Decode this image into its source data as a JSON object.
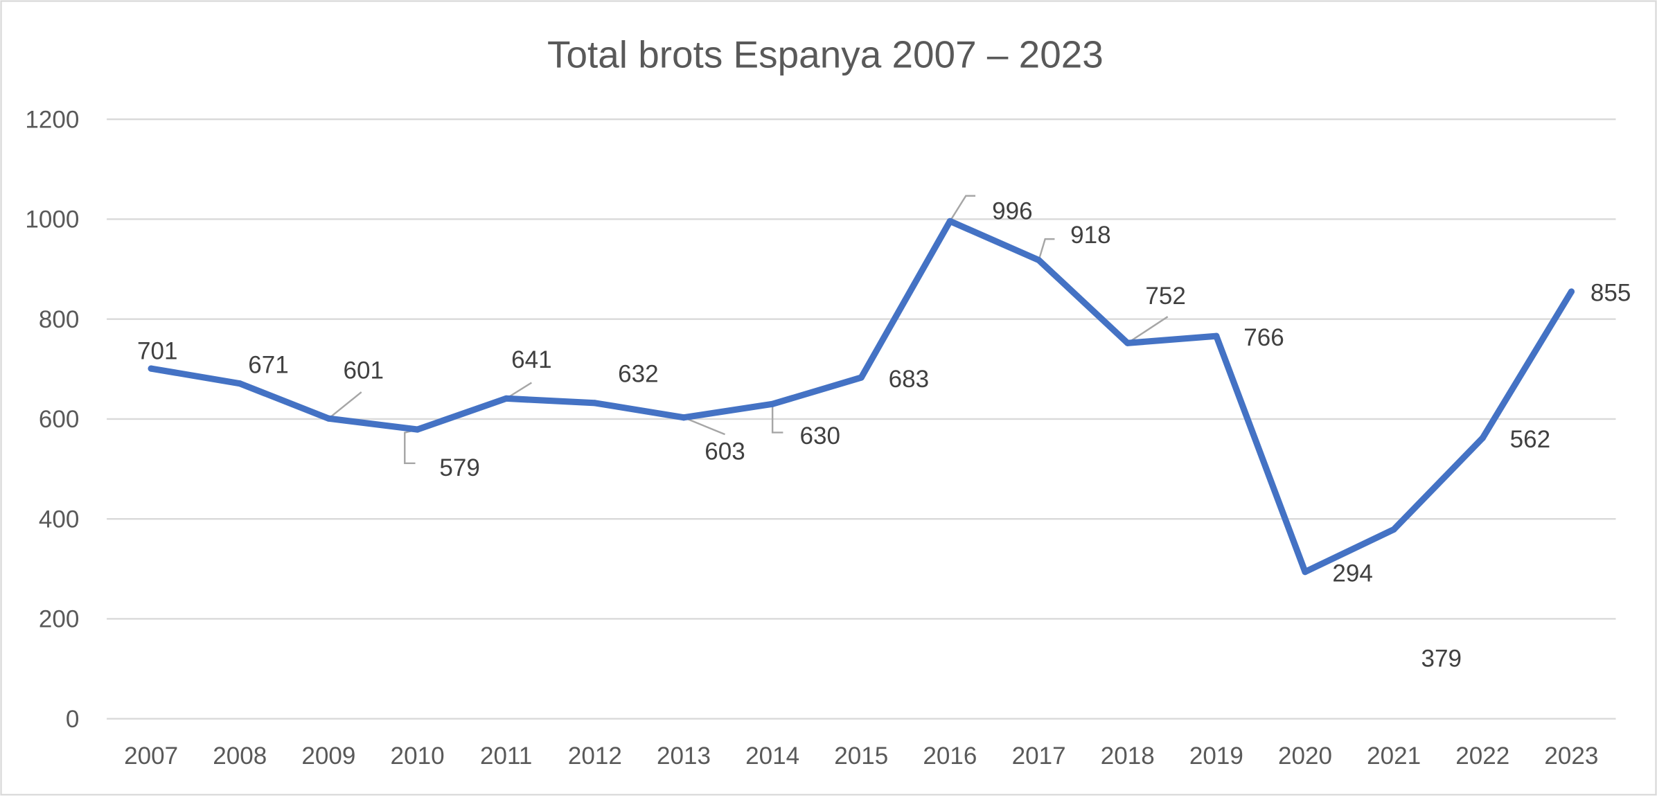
{
  "chart_data": {
    "type": "line",
    "title": "Total brots Espanya 2007 – 2023",
    "categories": [
      "2007",
      "2008",
      "2009",
      "2010",
      "2011",
      "2012",
      "2013",
      "2014",
      "2015",
      "2016",
      "2017",
      "2018",
      "2019",
      "2020",
      "2021",
      "2022",
      "2023"
    ],
    "series": [
      {
        "values": [
          701,
          671,
          601,
          579,
          641,
          632,
          603,
          630,
          683,
          996,
          918,
          752,
          766,
          294,
          379,
          562,
          855
        ]
      }
    ],
    "data_labels": [
      "701",
      "671",
      "601",
      "579",
      "641",
      "632",
      "603",
      "630",
      "683",
      "996",
      "918",
      "752",
      "766",
      "294",
      "379",
      "562",
      "855"
    ],
    "y_ticks": [
      "0",
      "200",
      "400",
      "600",
      "800",
      "1000",
      "1200"
    ],
    "ylim": [
      0,
      1200
    ],
    "grid": true,
    "legend": false,
    "colors": {
      "series": "#4472C4",
      "grid": "#d9d9d9",
      "leader": "#a6a6a6",
      "frame": "#d9d9d9"
    }
  }
}
